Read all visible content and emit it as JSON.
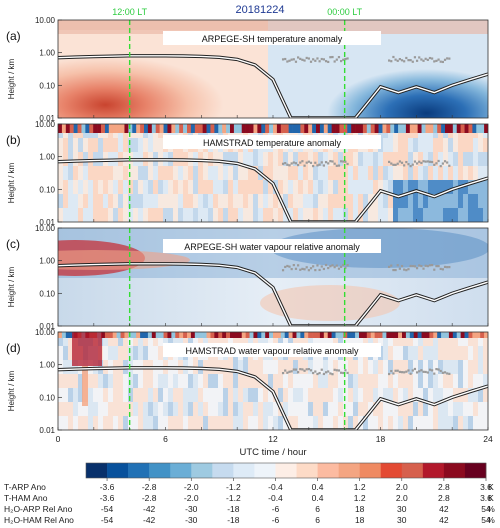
{
  "chart_data": {
    "type": "heatmap",
    "date": "20181224",
    "markers": [
      {
        "label": "12:00 LT",
        "x": 4,
        "color": "#33dd33"
      },
      {
        "label": "00:00 LT",
        "x": 16,
        "color": "#33dd33"
      }
    ],
    "xlabel": "UTC time / hour",
    "xlim": [
      0,
      24
    ],
    "xticks": [
      "0",
      "6",
      "12",
      "18",
      "24"
    ],
    "ylabel": "Height / km",
    "yscale": "log",
    "ylim": [
      0.01,
      10
    ],
    "yticks": [
      "0.01",
      "0.10",
      "1.00",
      "10.00"
    ],
    "panels": [
      {
        "letter": "(a)",
        "title": "ARPEGE-SH  temperature anomaly"
      },
      {
        "letter": "(b)",
        "title": "HAMSTRAD  temperature anomaly"
      },
      {
        "letter": "(c)",
        "title": "ARPEGE-SH water vapour relative anomaly"
      },
      {
        "letter": "(d)",
        "title": "HAMSTRAD water vapour relative anomaly"
      }
    ],
    "boundary_layer_height": {
      "x": [
        0,
        1,
        2,
        3,
        4,
        5,
        6,
        7,
        8,
        9,
        10,
        11,
        12,
        13,
        14,
        15,
        16,
        16.6,
        17.3,
        18,
        19,
        20,
        21,
        22,
        23,
        24
      ],
      "y": [
        0.7,
        0.73,
        0.76,
        0.78,
        0.8,
        0.8,
        0.8,
        0.79,
        0.77,
        0.72,
        0.62,
        0.42,
        0.15,
        0.01,
        0.01,
        0.01,
        0.01,
        0.01,
        0.03,
        0.09,
        0.06,
        0.09,
        0.06,
        0.1,
        0.15,
        0.22
      ]
    },
    "colorbar": {
      "colors": [
        "#08306b",
        "#08519c",
        "#2171b5",
        "#4292c6",
        "#6baed6",
        "#9ecae1",
        "#c6dbef",
        "#deebf7",
        "#eef4fa",
        "#fdeee6",
        "#fddbc7",
        "#fcbba1",
        "#f4a582",
        "#ef8a62",
        "#e34a33",
        "#d6604d",
        "#b2182b",
        "#8b0a1f",
        "#67001f"
      ],
      "rows": [
        {
          "label": "T-ARP Ano",
          "ticks": [
            "-3.6",
            "-2.8",
            "-2.0",
            "-1.2",
            "-0.4",
            "0.4",
            "1.2",
            "2.0",
            "2.8",
            "3.6"
          ],
          "unit": "K"
        },
        {
          "label": "T-HAM Ano",
          "ticks": [
            "-3.6",
            "-2.8",
            "-2.0",
            "-1.2",
            "-0.4",
            "0.4",
            "1.2",
            "2.0",
            "2.8",
            "3.6"
          ],
          "unit": "K"
        },
        {
          "label": "H₂O-ARP Rel Ano",
          "ticks": [
            "-54",
            "-42",
            "-30",
            "-18",
            "-6",
            "6",
            "18",
            "30",
            "42",
            "54"
          ],
          "unit": "%"
        },
        {
          "label": "H₂O-HAM Rel Ano",
          "ticks": [
            "-54",
            "-42",
            "-30",
            "-18",
            "-6",
            "6",
            "18",
            "30",
            "42",
            "54"
          ],
          "unit": "%"
        }
      ]
    }
  }
}
